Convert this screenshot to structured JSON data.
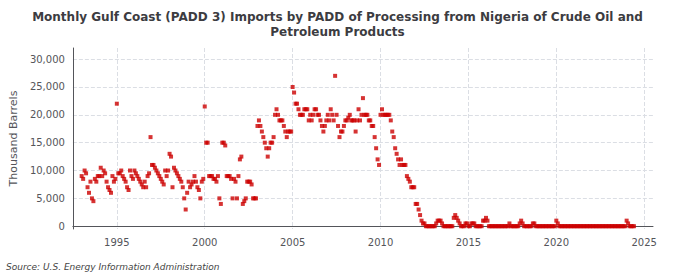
{
  "chart_data": {
    "type": "scatter",
    "title": "Monthly Gulf Coast (PADD 3) Imports by PADD of Processing from Nigeria of Crude Oil and\nPetroleum Products",
    "ylabel": "Thousand Barrels",
    "annotation": "Source: U.S. Energy Information Administration",
    "color": "#cc0000",
    "marker": "square",
    "grid": true,
    "xlim": [
      1992.5,
      2025.5
    ],
    "ylim": [
      -500,
      32000
    ],
    "xticks": [
      1995,
      2000,
      2005,
      2010,
      2015,
      2020,
      2025
    ],
    "yticks": [
      0,
      {
        "value": 5000,
        "label": "5,000"
      },
      {
        "value": 10000,
        "label": "10,000"
      },
      {
        "value": 15000,
        "label": "15,000"
      },
      {
        "value": 20000,
        "label": "20,000"
      },
      {
        "value": 25000,
        "label": "25,000"
      },
      {
        "value": 30000,
        "label": "30,000"
      }
    ],
    "x": [
      1993,
      1993.0833333333333,
      1993.1666666666667,
      1993.25,
      1993.3333333333333,
      1993.4166666666667,
      1993.5,
      1993.5833333333333,
      1993.6666666666667,
      1993.75,
      1993.8333333333333,
      1993.9166666666667,
      1994,
      1994.0833333333333,
      1994.1666666666667,
      1994.25,
      1994.3333333333333,
      1994.4166666666667,
      1994.5,
      1994.5833333333333,
      1994.6666666666667,
      1994.75,
      1994.8333333333333,
      1994.9166666666667,
      1995,
      1995.0833333333333,
      1995.1666666666667,
      1995.25,
      1995.3333333333333,
      1995.4166666666667,
      1995.5,
      1995.5833333333333,
      1995.6666666666667,
      1995.75,
      1995.8333333333333,
      1995.9166666666667,
      1996,
      1996.0833333333333,
      1996.1666666666667,
      1996.25,
      1996.3333333333333,
      1996.4166666666667,
      1996.5,
      1996.5833333333333,
      1996.6666666666667,
      1996.75,
      1996.8333333333333,
      1996.9166666666667,
      1997,
      1997.0833333333333,
      1997.1666666666667,
      1997.25,
      1997.3333333333333,
      1997.4166666666667,
      1997.5,
      1997.5833333333333,
      1997.6666666666667,
      1997.75,
      1997.8333333333333,
      1997.9166666666667,
      1998,
      1998.0833333333333,
      1998.1666666666667,
      1998.25,
      1998.3333333333333,
      1998.4166666666667,
      1998.5,
      1998.5833333333333,
      1998.6666666666667,
      1998.75,
      1998.8333333333333,
      1998.9166666666667,
      1999,
      1999.0833333333333,
      1999.1666666666667,
      1999.25,
      1999.3333333333333,
      1999.4166666666667,
      1999.5,
      1999.5833333333333,
      1999.6666666666667,
      1999.75,
      1999.8333333333333,
      1999.9166666666667,
      2000,
      2000.0833333333333,
      2000.1666666666667,
      2000.25,
      2000.3333333333333,
      2000.4166666666667,
      2000.5,
      2000.5833333333333,
      2000.6666666666667,
      2000.75,
      2000.8333333333333,
      2000.9166666666667,
      2001,
      2001.0833333333333,
      2001.1666666666667,
      2001.25,
      2001.3333333333333,
      2001.4166666666667,
      2001.5,
      2001.5833333333333,
      2001.6666666666667,
      2001.75,
      2001.8333333333333,
      2001.9166666666667,
      2002,
      2002.0833333333333,
      2002.1666666666667,
      2002.25,
      2002.3333333333333,
      2002.4166666666667,
      2002.5,
      2002.5833333333333,
      2002.6666666666667,
      2002.75,
      2002.8333333333333,
      2002.9166666666667,
      2003,
      2003.0833333333333,
      2003.1666666666667,
      2003.25,
      2003.3333333333333,
      2003.4166666666667,
      2003.5,
      2003.5833333333333,
      2003.6666666666667,
      2003.75,
      2003.8333333333333,
      2003.9166666666667,
      2004,
      2004.0833333333333,
      2004.1666666666667,
      2004.25,
      2004.3333333333333,
      2004.4166666666667,
      2004.5,
      2004.5833333333333,
      2004.6666666666667,
      2004.75,
      2004.8333333333333,
      2004.9166666666667,
      2005,
      2005.0833333333333,
      2005.1666666666667,
      2005.25,
      2005.3333333333333,
      2005.4166666666667,
      2005.5,
      2005.5833333333333,
      2005.6666666666667,
      2005.75,
      2005.8333333333333,
      2005.9166666666667,
      2006,
      2006.0833333333333,
      2006.1666666666667,
      2006.25,
      2006.3333333333333,
      2006.4166666666667,
      2006.5,
      2006.5833333333333,
      2006.6666666666667,
      2006.75,
      2006.8333333333333,
      2006.9166666666667,
      2007,
      2007.0833333333333,
      2007.1666666666667,
      2007.25,
      2007.3333333333333,
      2007.4166666666667,
      2007.5,
      2007.5833333333333,
      2007.6666666666667,
      2007.75,
      2007.8333333333333,
      2007.9166666666667,
      2008,
      2008.0833333333333,
      2008.1666666666667,
      2008.25,
      2008.3333333333333,
      2008.4166666666667,
      2008.5,
      2008.5833333333333,
      2008.6666666666667,
      2008.75,
      2008.8333333333333,
      2008.9166666666667,
      2009,
      2009.0833333333333,
      2009.1666666666667,
      2009.25,
      2009.3333333333333,
      2009.4166666666667,
      2009.5,
      2009.5833333333333,
      2009.6666666666667,
      2009.75,
      2009.8333333333333,
      2009.9166666666667,
      2010,
      2010.0833333333333,
      2010.1666666666667,
      2010.25,
      2010.3333333333333,
      2010.4166666666667,
      2010.5,
      2010.5833333333333,
      2010.6666666666667,
      2010.75,
      2010.8333333333333,
      2010.9166666666667,
      2011,
      2011.0833333333333,
      2011.1666666666667,
      2011.25,
      2011.3333333333333,
      2011.4166666666667,
      2011.5,
      2011.5833333333333,
      2011.6666666666667,
      2011.75,
      2011.8333333333333,
      2011.9166666666667,
      2012,
      2012.0833333333333,
      2012.1666666666667,
      2012.25,
      2012.3333333333333,
      2012.4166666666667,
      2012.5,
      2012.5833333333333,
      2012.6666666666667,
      2012.75,
      2012.8333333333333,
      2012.9166666666667,
      2013,
      2013.0833333333333,
      2013.1666666666667,
      2013.25,
      2013.3333333333333,
      2013.4166666666667,
      2013.5,
      2013.5833333333333,
      2013.6666666666667,
      2013.75,
      2013.8333333333333,
      2013.9166666666667,
      2014,
      2014.0833333333333,
      2014.1666666666667,
      2014.25,
      2014.3333333333333,
      2014.4166666666667,
      2014.5,
      2014.5833333333333,
      2014.6666666666667,
      2014.75,
      2014.8333333333333,
      2014.9166666666667,
      2015,
      2015.0833333333333,
      2015.1666666666667,
      2015.25,
      2015.3333333333333,
      2015.4166666666667,
      2015.5,
      2015.5833333333333,
      2015.6666666666667,
      2015.75,
      2015.8333333333333,
      2015.9166666666667,
      2016,
      2016.0833333333333,
      2016.1666666666667,
      2016.25,
      2016.3333333333333,
      2016.4166666666667,
      2016.5,
      2016.5833333333333,
      2016.6666666666667,
      2016.75,
      2016.8333333333333,
      2016.9166666666667,
      2017,
      2017.0833333333333,
      2017.1666666666667,
      2017.25,
      2017.3333333333333,
      2017.4166666666667,
      2017.5,
      2017.5833333333333,
      2017.6666666666667,
      2017.75,
      2017.8333333333333,
      2017.9166666666667,
      2018,
      2018.0833333333333,
      2018.1666666666667,
      2018.25,
      2018.3333333333333,
      2018.4166666666667,
      2018.5,
      2018.5833333333333,
      2018.6666666666667,
      2018.75,
      2018.8333333333333,
      2018.9166666666667,
      2019,
      2019.0833333333333,
      2019.1666666666667,
      2019.25,
      2019.3333333333333,
      2019.4166666666667,
      2019.5,
      2019.5833333333333,
      2019.6666666666667,
      2019.75,
      2019.8333333333333,
      2019.9166666666667,
      2020,
      2020.0833333333333,
      2020.1666666666667,
      2020.25,
      2020.3333333333333,
      2020.4166666666667,
      2020.5,
      2020.5833333333333,
      2020.6666666666667,
      2020.75,
      2020.8333333333333,
      2020.9166666666667,
      2021,
      2021.0833333333333,
      2021.1666666666667,
      2021.25,
      2021.3333333333333,
      2021.4166666666667,
      2021.5,
      2021.5833333333333,
      2021.6666666666667,
      2021.75,
      2021.8333333333333,
      2021.9166666666667,
      2022,
      2022.0833333333333,
      2022.1666666666667,
      2022.25,
      2022.3333333333333,
      2022.4166666666667,
      2022.5,
      2022.5833333333333,
      2022.6666666666667,
      2022.75,
      2022.8333333333333,
      2022.9166666666667,
      2023,
      2023.0833333333333,
      2023.1666666666667,
      2023.25,
      2023.3333333333333,
      2023.4166666666667,
      2023.5,
      2023.5833333333333,
      2023.6666666666667,
      2023.75,
      2023.8333333333333,
      2023.9166666666667,
      2024,
      2024.0833333333333,
      2024.1666666666667,
      2024.25,
      2024.3333333333333,
      2024.4166666666667
    ],
    "values": [
      9000,
      8500,
      10000,
      9500,
      7000,
      6000,
      8000,
      5000,
      4500,
      8500,
      8000,
      9000,
      9000,
      10500,
      9000,
      10000,
      9500,
      8000,
      7000,
      6500,
      6000,
      9000,
      8000,
      8500,
      22000,
      9500,
      9500,
      10000,
      9000,
      8500,
      8000,
      7000,
      6500,
      10000,
      9000,
      8500,
      10000,
      9500,
      9000,
      8500,
      8000,
      7500,
      7000,
      8000,
      7000,
      9000,
      9500,
      16000,
      11000,
      11000,
      10500,
      10000,
      9500,
      9000,
      8500,
      8000,
      7500,
      10000,
      9000,
      10000,
      13000,
      12500,
      7000,
      10500,
      10000,
      9500,
      9000,
      8500,
      8000,
      7000,
      5000,
      3000,
      6000,
      8000,
      7000,
      7500,
      8000,
      9000,
      8000,
      7000,
      6500,
      5000,
      8000,
      8500,
      21500,
      15000,
      15000,
      9000,
      9000,
      9000,
      8500,
      8500,
      8000,
      9000,
      5000,
      4000,
      15000,
      15000,
      14500,
      9000,
      9000,
      9000,
      8500,
      5000,
      8500,
      8000,
      5000,
      9000,
      12000,
      12500,
      4000,
      4500,
      5000,
      8000,
      8000,
      8000,
      7500,
      5000,
      5000,
      5000,
      18000,
      19000,
      18000,
      17000,
      16000,
      15000,
      14000,
      12500,
      14000,
      15000,
      15000,
      16000,
      20000,
      21000,
      20000,
      19000,
      19000,
      19000,
      18000,
      17000,
      16000,
      17000,
      17000,
      17000,
      25000,
      24000,
      22000,
      22000,
      21000,
      20000,
      20000,
      20000,
      21000,
      21000,
      21000,
      19000,
      20000,
      19000,
      20000,
      21000,
      21000,
      20000,
      20000,
      19000,
      18000,
      17000,
      18000,
      19000,
      20000,
      19000,
      21000,
      20000,
      19000,
      27000,
      20000,
      18000,
      16000,
      17000,
      17000,
      18000,
      19000,
      19000,
      19500,
      20000,
      19000,
      19000,
      19000,
      17000,
      19000,
      21000,
      19000,
      20000,
      23000,
      20000,
      20000,
      20000,
      19000,
      19000,
      18000,
      18000,
      16000,
      14000,
      12000,
      11000,
      20000,
      21000,
      20000,
      20000,
      20000,
      20000,
      20000,
      19000,
      17000,
      16000,
      14000,
      13000,
      12000,
      11000,
      12000,
      11000,
      11000,
      11000,
      9000,
      8500,
      8000,
      7000,
      7000,
      7000,
      4000,
      4000,
      3000,
      2000,
      1000,
      500,
      500,
      0,
      0,
      0,
      0,
      0,
      0,
      0,
      500,
      1000,
      1000,
      1000,
      500,
      0,
      0,
      0,
      0,
      0,
      0,
      0,
      1500,
      2000,
      1500,
      1000,
      500,
      0,
      0,
      0,
      500,
      500,
      0,
      0,
      500,
      500,
      500,
      0,
      0,
      0,
      0,
      0,
      1000,
      1000,
      1500,
      1000,
      0,
      0,
      0,
      0,
      0,
      0,
      0,
      0,
      0,
      0,
      0,
      0,
      0,
      0,
      500,
      0,
      0,
      0,
      0,
      0,
      0,
      500,
      1000,
      500,
      0,
      0,
      0,
      0,
      0,
      0,
      500,
      500,
      0,
      0,
      0,
      0,
      0,
      0,
      0,
      0,
      0,
      0,
      0,
      0,
      0,
      0,
      1000,
      500,
      0,
      0,
      0,
      0,
      0,
      0,
      0,
      0,
      0,
      0,
      0,
      0,
      0,
      0,
      0,
      0,
      0,
      0,
      0,
      0,
      0,
      0,
      0,
      0,
      0,
      0,
      0,
      0,
      0,
      0,
      0,
      0,
      0,
      0,
      0,
      0,
      0,
      0,
      0,
      0,
      0,
      0,
      0,
      0,
      0,
      0,
      1000,
      500,
      0,
      0,
      0,
      0
    ]
  }
}
